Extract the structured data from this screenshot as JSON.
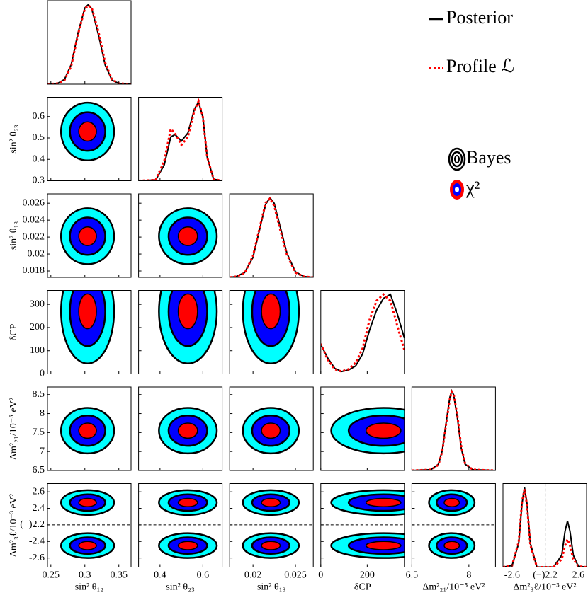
{
  "chart_data": {
    "type": "corner",
    "series": [
      {
        "name": "Posterior",
        "color": "#000000",
        "style": "solid"
      },
      {
        "name": "Profile ℒ",
        "color": "#ff0000",
        "style": "dotted"
      }
    ],
    "contour_legend": [
      "Bayes",
      "χ²"
    ],
    "contour_colors": [
      "#ff0000",
      "#0000ff",
      "#00ffff"
    ],
    "curve_ylim": [
      0,
      1.05
    ],
    "params": [
      {
        "label": "sin² θ₁₂",
        "lim": [
          0.245,
          0.368
        ],
        "xticks": [
          0.25,
          0.3,
          0.35
        ],
        "yticks": [],
        "modes": [
          {
            "center": 0.304,
            "sigma": 0.013
          }
        ],
        "x": [
          0.245,
          0.26,
          0.27,
          0.28,
          0.29,
          0.3,
          0.305,
          0.31,
          0.32,
          0.33,
          0.34,
          0.35,
          0.368
        ],
        "curves": [
          [
            0,
            0.01,
            0.06,
            0.25,
            0.65,
            0.96,
            1.0,
            0.95,
            0.62,
            0.24,
            0.05,
            0.01,
            0
          ],
          [
            0,
            0.01,
            0.05,
            0.23,
            0.63,
            0.95,
            0.99,
            0.96,
            0.66,
            0.27,
            0.06,
            0.01,
            0
          ]
        ]
      },
      {
        "label": "sin² θ₂₃",
        "lim": [
          0.3,
          0.69
        ],
        "xticks": [
          0.4,
          0.6
        ],
        "yticks": [
          0.3,
          0.4,
          0.5,
          0.6
        ],
        "modes": [
          {
            "center": 0.53,
            "sigma": 0.045
          }
        ],
        "x": [
          0.3,
          0.38,
          0.42,
          0.45,
          0.47,
          0.5,
          0.53,
          0.56,
          0.58,
          0.6,
          0.62,
          0.65,
          0.69
        ],
        "curves": [
          [
            0,
            0.01,
            0.2,
            0.55,
            0.58,
            0.5,
            0.6,
            0.9,
            0.99,
            0.8,
            0.3,
            0.02,
            0
          ],
          [
            0,
            0.01,
            0.25,
            0.65,
            0.6,
            0.45,
            0.55,
            0.88,
            1.0,
            0.8,
            0.3,
            0.02,
            0
          ]
        ]
      },
      {
        "label": "sin² θ₁₃",
        "lim": [
          0.01725,
          0.0271
        ],
        "xticks": [
          0.02,
          0.025
        ],
        "yticks": [
          0.018,
          0.02,
          0.022,
          0.024,
          0.026
        ],
        "modes": [
          {
            "center": 0.0221,
            "sigma": 0.0011
          }
        ],
        "x": [
          0.01725,
          0.018,
          0.019,
          0.02,
          0.021,
          0.0215,
          0.022,
          0.0225,
          0.023,
          0.024,
          0.025,
          0.026,
          0.0271
        ],
        "curves": [
          [
            0,
            0.01,
            0.06,
            0.25,
            0.7,
            0.92,
            1.0,
            0.93,
            0.72,
            0.3,
            0.07,
            0.01,
            0
          ],
          [
            0,
            0.01,
            0.05,
            0.27,
            0.72,
            0.94,
            0.99,
            0.9,
            0.68,
            0.28,
            0.06,
            0.01,
            0
          ]
        ]
      },
      {
        "label": "δCP",
        "lim": [
          0,
          360
        ],
        "xticks": [
          0,
          200
        ],
        "yticks": [
          0,
          100,
          200,
          300
        ],
        "modes": [
          {
            "center": 270,
            "sigma": 75
          }
        ],
        "x": [
          0,
          30,
          60,
          90,
          120,
          150,
          180,
          210,
          240,
          270,
          300,
          330,
          360
        ],
        "curves": [
          [
            0.37,
            0.2,
            0.07,
            0.03,
            0.05,
            0.1,
            0.25,
            0.55,
            0.8,
            0.95,
            1.0,
            0.75,
            0.45
          ],
          [
            0.38,
            0.18,
            0.06,
            0.03,
            0.06,
            0.14,
            0.32,
            0.68,
            0.92,
            1.0,
            0.92,
            0.6,
            0.3
          ]
        ]
      },
      {
        "label": "Δm²₂₁/10⁻⁵ eV²",
        "lim": [
          6.5,
          8.7
        ],
        "xticks": [
          6.5,
          8
        ],
        "yticks": [
          6.5,
          7,
          7.5,
          8,
          8.5
        ],
        "modes": [
          {
            "center": 7.55,
            "sigma": 0.2
          }
        ],
        "x": [
          6.5,
          7.0,
          7.2,
          7.3,
          7.4,
          7.5,
          7.55,
          7.6,
          7.7,
          7.8,
          7.9,
          8.1,
          8.7
        ],
        "curves": [
          [
            0,
            0.01,
            0.08,
            0.25,
            0.6,
            0.92,
            1.0,
            0.95,
            0.65,
            0.28,
            0.08,
            0.01,
            0
          ],
          [
            0,
            0.01,
            0.07,
            0.24,
            0.58,
            0.9,
            0.99,
            0.96,
            0.68,
            0.3,
            0.09,
            0.01,
            0
          ]
        ]
      },
      {
        "label": "Δm²₃ℓ/10⁻³ eV²",
        "lim": [
          -2.71,
          2.7
        ],
        "fold": 2.2,
        "xticks": [
          -2.6,
          {
            "value": 2.2,
            "label": "(−)2.2"
          },
          2.6
        ],
        "yticks": [
          2.6,
          2.4,
          {
            "value": 2.2,
            "label": "(−)2.2"
          },
          -2.4,
          -2.6
        ],
        "modes": [
          {
            "center": 2.47,
            "sigma": 0.05
          },
          {
            "center": -2.45,
            "sigma": 0.05
          }
        ],
        "x": [
          -2.71,
          -2.6,
          -2.52,
          -2.48,
          -2.45,
          -2.42,
          -2.38,
          -2.3,
          2.3,
          2.4,
          2.44,
          2.47,
          2.5,
          2.54,
          2.6,
          2.7
        ],
        "curves": [
          [
            0,
            0.02,
            0.3,
            0.8,
            1.0,
            0.8,
            0.3,
            0,
            0,
            0.15,
            0.45,
            0.58,
            0.45,
            0.15,
            0.01,
            0
          ],
          [
            0,
            0.02,
            0.32,
            0.82,
            0.98,
            0.78,
            0.28,
            0,
            0,
            0.1,
            0.27,
            0.35,
            0.27,
            0.1,
            0.01,
            0
          ]
        ]
      }
    ]
  }
}
